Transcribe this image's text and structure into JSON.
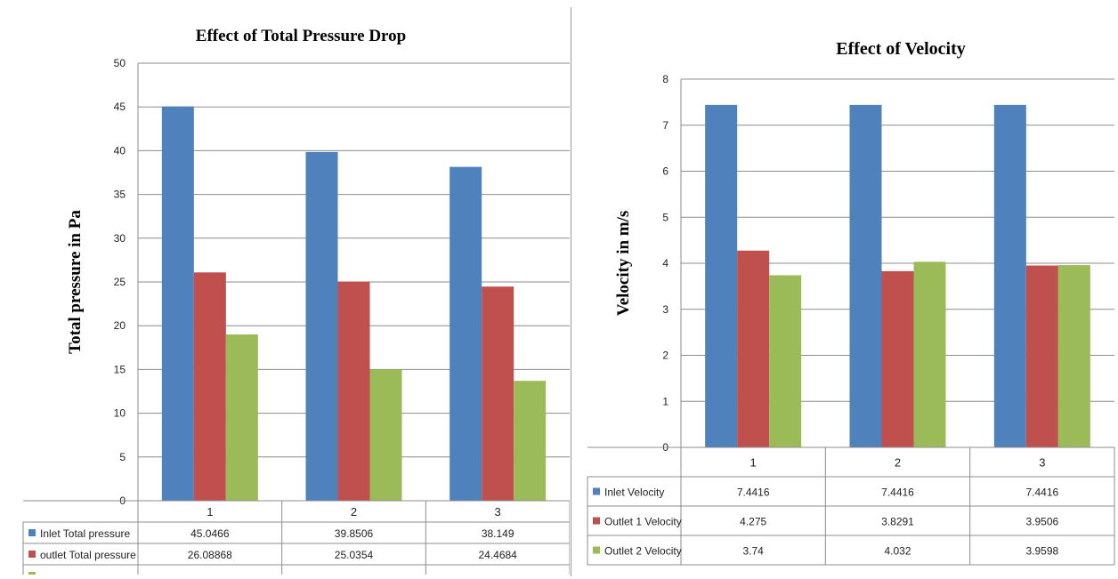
{
  "chart_data": [
    {
      "type": "bar",
      "title": "Effect of Total Pressure Drop",
      "xlabel": "",
      "ylabel": "Total pressure in Pa",
      "ylim": [
        0,
        50
      ],
      "yticks": [
        "0",
        "5",
        "10",
        "15",
        "20",
        "25",
        "30",
        "35",
        "40",
        "45",
        "50"
      ],
      "categories": [
        "1",
        "2",
        "3"
      ],
      "grid": true,
      "legend": "data table below chart",
      "series": [
        {
          "name": "Inlet Total pressure",
          "values": [
            45.0466,
            39.8506,
            38.149
          ],
          "labels": [
            "45.0466",
            "39.8506",
            "38.149"
          ],
          "color": "#4f81bd"
        },
        {
          "name": "outlet Total pressure",
          "values": [
            26.08868,
            25.0354,
            24.4684
          ],
          "labels": [
            "26.08868",
            "25.0354",
            "24.4684"
          ],
          "color": "#c0504d"
        },
        {
          "name": "",
          "values": [
            19.0,
            15.0,
            13.7
          ],
          "labels": [],
          "color": "#9bbb59"
        }
      ]
    },
    {
      "type": "bar",
      "title": "Effect of Velocity",
      "xlabel": "",
      "ylabel": "Velocity in m/s",
      "ylim": [
        0,
        8
      ],
      "yticks": [
        "0",
        "1",
        "2",
        "3",
        "4",
        "5",
        "6",
        "7",
        "8"
      ],
      "categories": [
        "1",
        "2",
        "3"
      ],
      "grid": true,
      "legend": "data table below chart",
      "series": [
        {
          "name": "Inlet Velocity",
          "values": [
            7.4416,
            7.4416,
            7.4416
          ],
          "labels": [
            "7.4416",
            "7.4416",
            "7.4416"
          ],
          "color": "#4f81bd"
        },
        {
          "name": "Outlet 1 Velocity",
          "values": [
            4.275,
            3.8291,
            3.9506
          ],
          "labels": [
            "4.275",
            "3.8291",
            "3.9506"
          ],
          "color": "#c0504d"
        },
        {
          "name": "Outlet 2 Velocity",
          "values": [
            3.74,
            4.032,
            3.9598
          ],
          "labels": [
            "3.74",
            "4.032",
            "3.9598"
          ],
          "color": "#9bbb59"
        }
      ]
    }
  ]
}
